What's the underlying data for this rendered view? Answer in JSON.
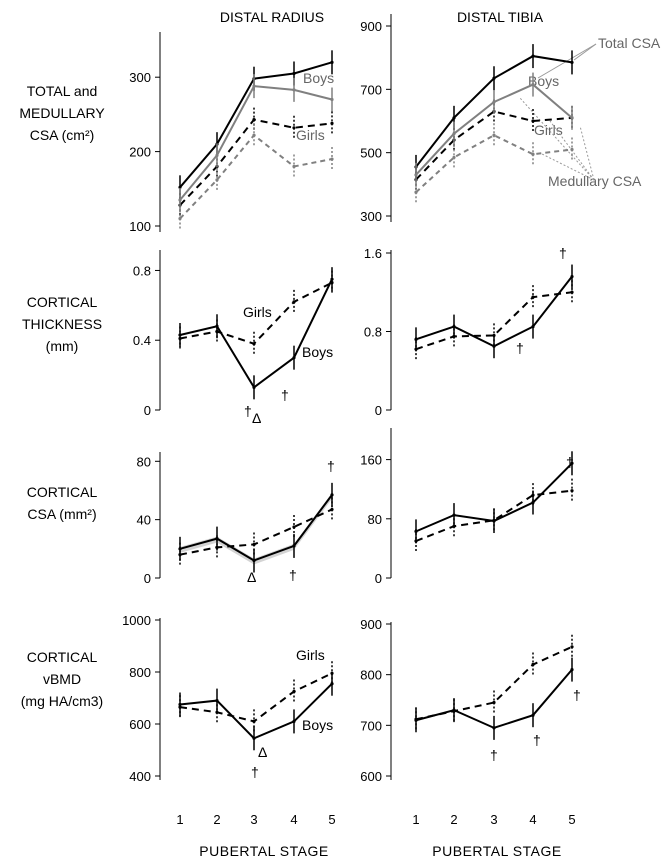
{
  "colors": {
    "boys": "#000000",
    "girls": "#000000",
    "boys_medullary": "#808080",
    "girls_medullary": "#808080",
    "arrow": "#999999",
    "band": "#d4d4d4"
  },
  "figure": {
    "column_titles": [
      "DISTAL RADIUS",
      "DISTAL TIBIA"
    ],
    "x_axis_title": "PUBERTAL STAGE",
    "x_ticks": [
      "1",
      "2",
      "3",
      "4",
      "5"
    ],
    "row_labels": [
      [
        "TOTAL  and",
        "MEDULLARY",
        "CSA (cm²)"
      ],
      [
        "CORTICAL",
        "THICKNESS",
        "(mm)"
      ],
      [
        "CORTICAL",
        "CSA  (mm²)"
      ],
      [
        "CORTICAL",
        "vBMD",
        "(mg HA/cm3)"
      ]
    ]
  },
  "chart_data": [
    {
      "type": "line",
      "panel": "radius-csa",
      "ylim": [
        100,
        350
      ],
      "yticks": [
        "100",
        "200",
        "300"
      ],
      "series": [
        {
          "name": "Boys",
          "role": "total",
          "values": [
            152,
            210,
            298,
            305,
            320
          ]
        },
        {
          "name": "Girls",
          "role": "total",
          "values": [
            128,
            180,
            243,
            232,
            238
          ]
        },
        {
          "role": "medullary",
          "values": [
            135,
            195,
            288,
            283,
            270
          ]
        },
        {
          "role": "medullary",
          "values": [
            110,
            162,
            222,
            180,
            190
          ]
        }
      ],
      "annotations": [
        "Boys",
        "Girls"
      ]
    },
    {
      "type": "line",
      "panel": "tibia-csa",
      "ylim": [
        300,
        900
      ],
      "yticks": [
        "300",
        "500",
        "700",
        "900"
      ],
      "series": [
        {
          "name": "Boys",
          "role": "total",
          "values": [
            455,
            610,
            735,
            805,
            785
          ]
        },
        {
          "name": "Girls",
          "role": "total",
          "values": [
            415,
            540,
            630,
            600,
            610
          ]
        },
        {
          "role": "medullary",
          "values": [
            430,
            560,
            660,
            715,
            610
          ]
        },
        {
          "role": "medullary",
          "values": [
            375,
            485,
            555,
            495,
            510
          ]
        }
      ],
      "annotations": [
        "Boys",
        "Girls",
        "Total CSA",
        "Medullary CSA"
      ]
    },
    {
      "type": "line",
      "panel": "radius-thickness",
      "ylim": [
        0,
        0.9
      ],
      "yticks": [
        "0",
        "0.4",
        "0.8"
      ],
      "series": [
        {
          "name": "Boys",
          "values": [
            0.43,
            0.48,
            0.13,
            0.3,
            0.75
          ]
        },
        {
          "name": "Girls",
          "values": [
            0.41,
            0.45,
            0.38,
            0.62,
            0.73
          ]
        }
      ],
      "annotations": [
        "Girls",
        "Boys",
        "†",
        "Δ",
        "†"
      ]
    },
    {
      "type": "line",
      "panel": "tibia-thickness",
      "ylim": [
        0,
        1.6
      ],
      "yticks": [
        "0",
        "0.8",
        "1.6"
      ],
      "series": [
        {
          "name": "Boys",
          "values": [
            0.72,
            0.85,
            0.65,
            0.85,
            1.36
          ]
        },
        {
          "name": "Girls",
          "values": [
            0.62,
            0.75,
            0.76,
            1.15,
            1.2
          ]
        }
      ],
      "annotations": [
        "†",
        "†"
      ]
    },
    {
      "type": "line",
      "panel": "radius-cortical-csa",
      "ylim": [
        0,
        85
      ],
      "yticks": [
        "0",
        "40",
        "80"
      ],
      "series": [
        {
          "name": "Boys",
          "values": [
            20,
            27,
            12,
            22,
            57
          ]
        },
        {
          "name": "Girls",
          "values": [
            16,
            21,
            23,
            35,
            47
          ]
        }
      ],
      "annotations": [
        "Δ",
        "†",
        "†"
      ]
    },
    {
      "type": "line",
      "panel": "tibia-cortical-csa",
      "ylim": [
        0,
        200
      ],
      "yticks": [
        "0",
        "80",
        "160"
      ],
      "series": [
        {
          "name": "Boys",
          "values": [
            63,
            85,
            77,
            102,
            155
          ]
        },
        {
          "name": "Girls",
          "values": [
            50,
            70,
            78,
            112,
            118
          ]
        }
      ],
      "annotations": [
        "†"
      ]
    },
    {
      "type": "line",
      "panel": "radius-vbmd",
      "ylim": [
        400,
        1000
      ],
      "yticks": [
        "400",
        "600",
        "800",
        "1000"
      ],
      "series": [
        {
          "name": "Boys",
          "values": [
            675,
            690,
            545,
            610,
            755
          ]
        },
        {
          "name": "Girls",
          "values": [
            665,
            645,
            610,
            725,
            795
          ]
        }
      ],
      "annotations": [
        "Girls",
        "Boys",
        "Δ",
        "†"
      ]
    },
    {
      "type": "line",
      "panel": "tibia-vbmd",
      "ylim": [
        600,
        900
      ],
      "yticks": [
        "600",
        "700",
        "800",
        "900"
      ],
      "series": [
        {
          "name": "Boys",
          "values": [
            710,
            730,
            695,
            720,
            810
          ]
        },
        {
          "name": "Girls",
          "values": [
            712,
            728,
            745,
            820,
            855
          ]
        }
      ],
      "annotations": [
        "†",
        "†",
        "†"
      ]
    }
  ]
}
